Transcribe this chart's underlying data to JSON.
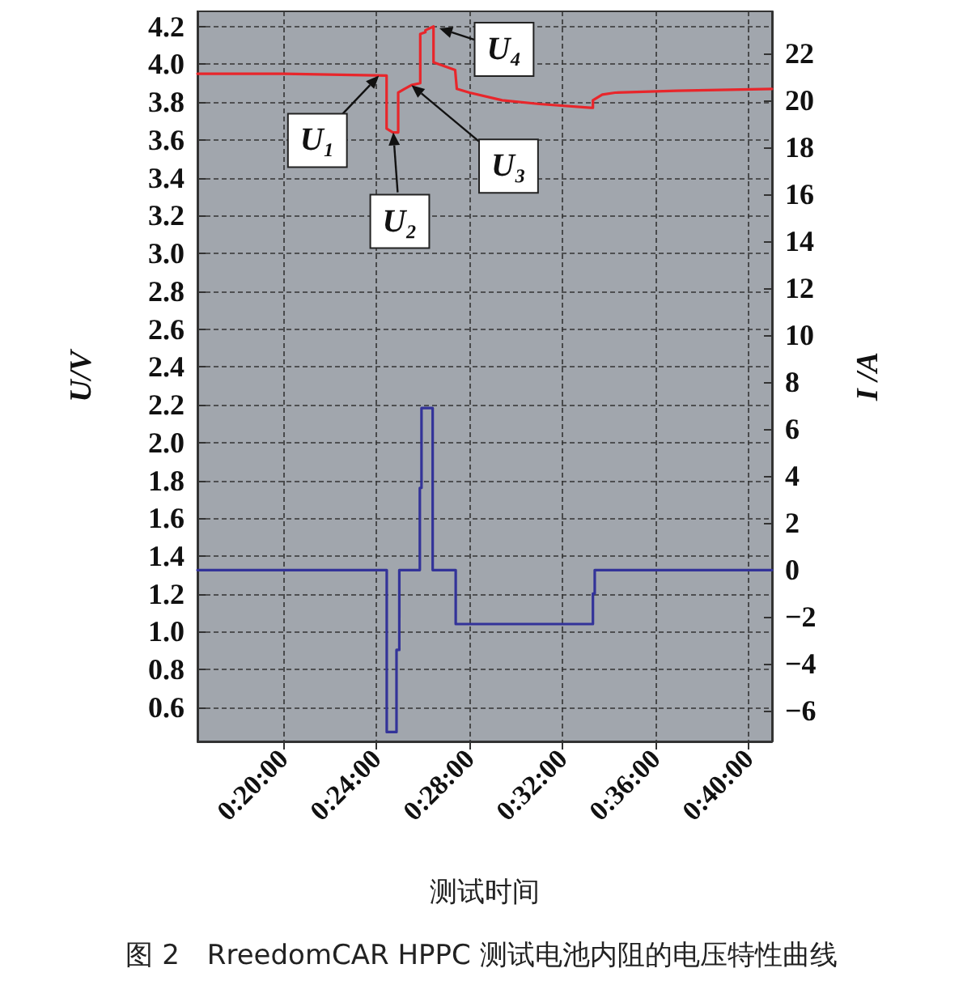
{
  "chart_data": {
    "type": "line",
    "title": "图 2　RreedomCAR HPPC 测试电池内阻的电压特性曲线",
    "xlabel": "测试时间",
    "ylabel": "U/V",
    "y2label": "I /A",
    "xlim": [
      0.2717,
      0.6833
    ],
    "xticks": [
      {
        "value": 0.3333,
        "label": "0:20:00"
      },
      {
        "value": 0.4,
        "label": "0:24:00"
      },
      {
        "value": 0.4667,
        "label": "0:28:00"
      },
      {
        "value": 0.5333,
        "label": "0:32:00"
      },
      {
        "value": 0.6,
        "label": "0:36:00"
      },
      {
        "value": 0.6667,
        "label": "0:40:00"
      }
    ],
    "ylim": [
      0.42,
      4.28
    ],
    "yticks": [
      0.6,
      0.8,
      {
        "value": 1,
        "label": "1.0"
      },
      1.2,
      1.4,
      1.6,
      1.8,
      {
        "value": 2,
        "label": "2.0"
      },
      2.2,
      2.4,
      2.6,
      2.8,
      {
        "value": 3,
        "label": "3.0"
      },
      3.2,
      3.4,
      3.6,
      3.8,
      {
        "value": 4,
        "label": "4.0"
      },
      4.2
    ],
    "y2lim": [
      -7.3,
      23.8
    ],
    "y2ticks": [
      -6,
      -4,
      -2,
      0,
      2,
      4,
      6,
      8,
      10,
      12,
      14,
      16,
      18,
      20,
      22
    ],
    "grid": true,
    "marker": "none",
    "line_style": "solid",
    "series": [
      {
        "color": "#e8262b",
        "x": [
          0.2717,
          0.3333,
          0.4072,
          0.4072,
          0.4117,
          0.4155,
          0.4155,
          0.42,
          0.425,
          0.4313,
          0.4313,
          0.435,
          0.435,
          0.4408,
          0.4408,
          0.4563,
          0.4575,
          0.4667,
          0.49,
          0.5167,
          0.5533,
          0.555,
          0.555,
          0.5617,
          0.5708,
          0.615,
          0.6833
        ],
        "values": [
          3.95,
          3.95,
          3.94,
          3.66,
          3.64,
          3.64,
          3.85,
          3.87,
          3.89,
          3.9,
          4.16,
          4.17,
          4.18,
          4.2,
          4.01,
          3.97,
          3.87,
          3.85,
          3.81,
          3.79,
          3.77,
          3.77,
          3.81,
          3.84,
          3.85,
          3.86,
          3.87
        ]
      },
      {
        "color": "#333399",
        "axis": "y2",
        "x": [
          0.2717,
          0.4073,
          0.4073,
          0.4143,
          0.4143,
          0.4163,
          0.4163,
          0.431,
          0.431,
          0.4322,
          0.4322,
          0.4402,
          0.4402,
          0.4567,
          0.4567,
          0.555,
          0.555,
          0.5563,
          0.5563,
          0.6833
        ],
        "values": [
          0,
          0,
          -6.9,
          -6.9,
          -3.4,
          -3.4,
          0,
          0,
          3.5,
          3.5,
          6.9,
          6.9,
          0,
          0,
          -2.3,
          -2.3,
          -1.0,
          -1.0,
          0,
          0
        ]
      }
    ],
    "annotations": [
      {
        "text": "U₁",
        "x": 0.4017,
        "y": 3.94
      },
      {
        "text": "U₂",
        "x": 0.412,
        "y": 3.64
      },
      {
        "text": "U₃",
        "x": 0.425,
        "y": 3.89
      },
      {
        "text": "U₄",
        "x": 0.445,
        "y": 4.19
      }
    ]
  }
}
